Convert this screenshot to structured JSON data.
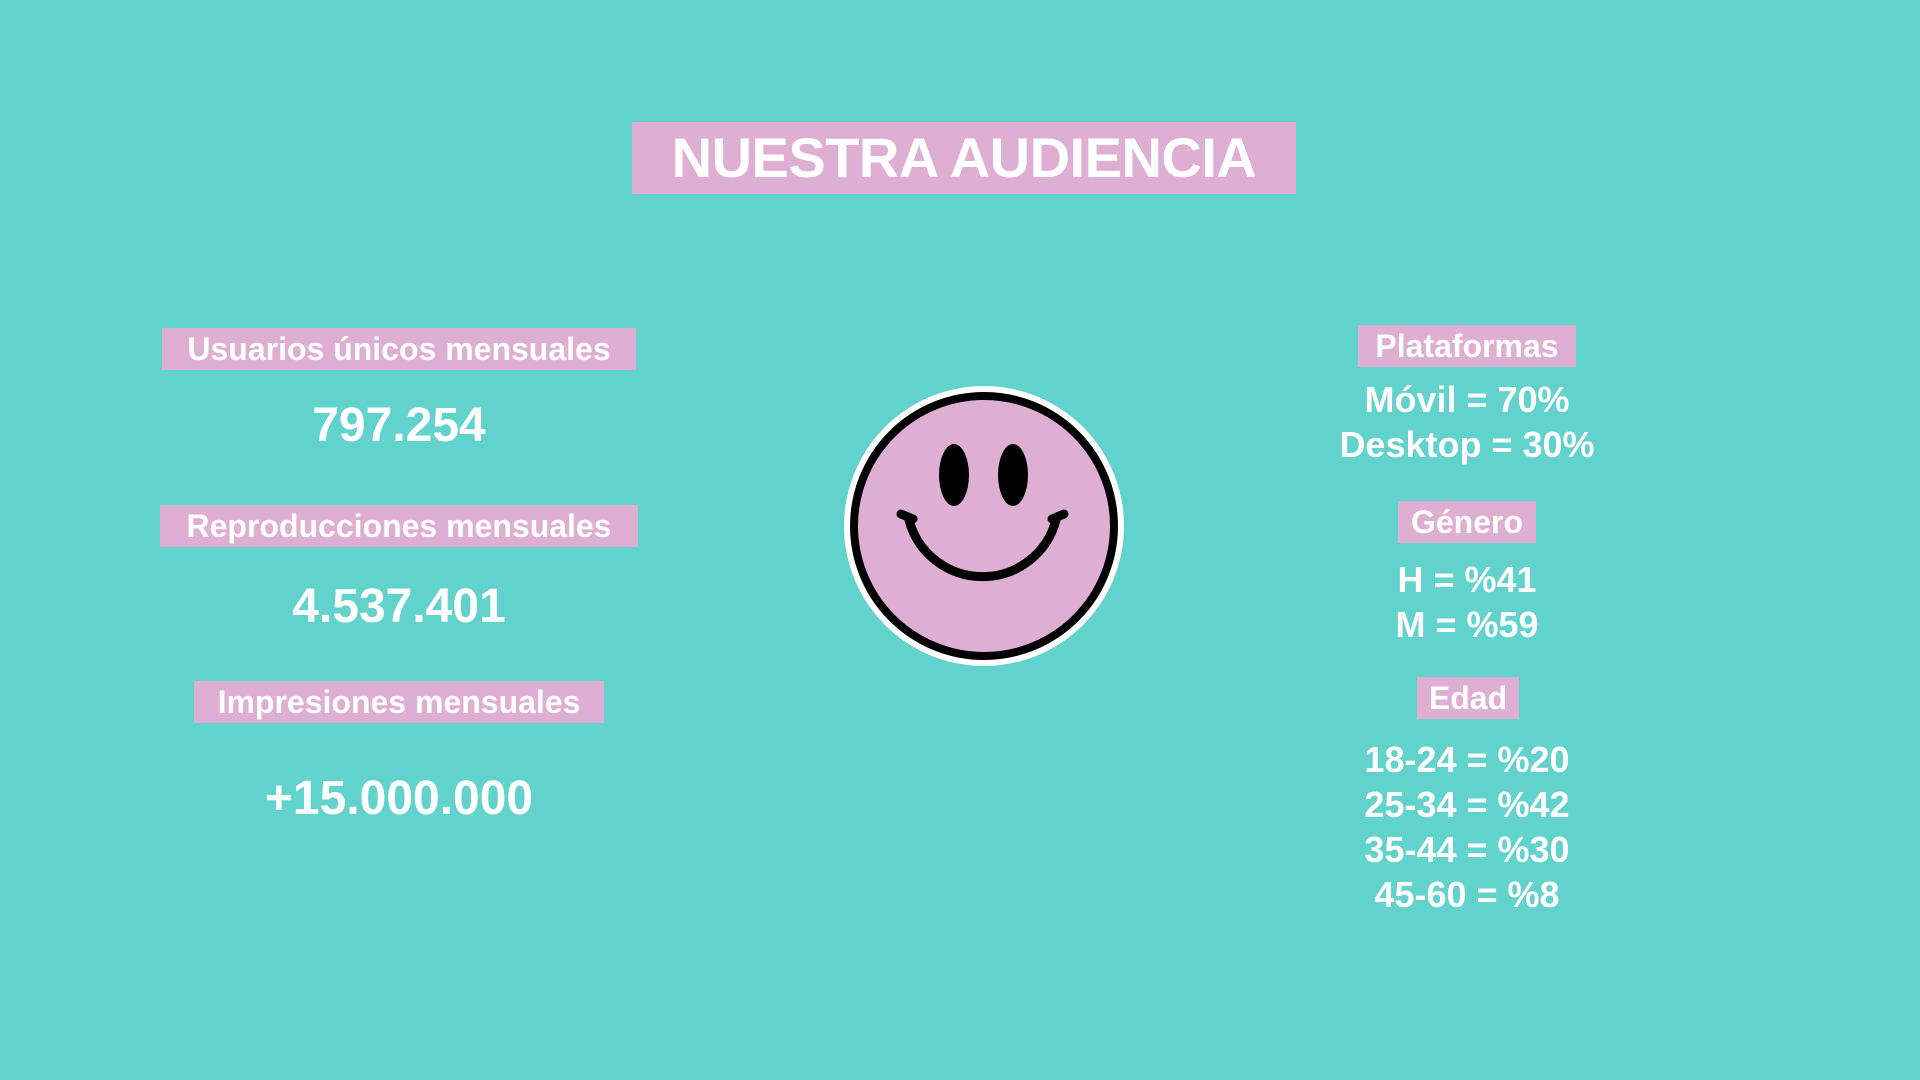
{
  "title": "NUESTRA AUDIENCIA",
  "colors": {
    "background": "#61d2cc",
    "pill": "#deaed3",
    "text": "#ffffff",
    "smiley_face": "#deaed3",
    "smiley_outline": "#000000"
  },
  "left_stats": [
    {
      "label": "Usuarios únicos mensuales",
      "value": "797.254"
    },
    {
      "label": "Reproducciones mensuales",
      "value": "4.537.401"
    },
    {
      "label": "Impresiones mensuales",
      "value": "+15.000.000"
    }
  ],
  "center_graphic": "smiley-face-icon",
  "right_stats": {
    "plataformas": {
      "label": "Plataformas",
      "lines": [
        "Móvil = 70%",
        "Desktop = 30%"
      ]
    },
    "genero": {
      "label": "Género",
      "lines": [
        "H = %41",
        "M = %59"
      ]
    },
    "edad": {
      "label": "Edad",
      "lines": [
        "18-24 = %20",
        "25-34 = %42",
        "35-44 = %30",
        "45-60 = %8"
      ]
    }
  }
}
